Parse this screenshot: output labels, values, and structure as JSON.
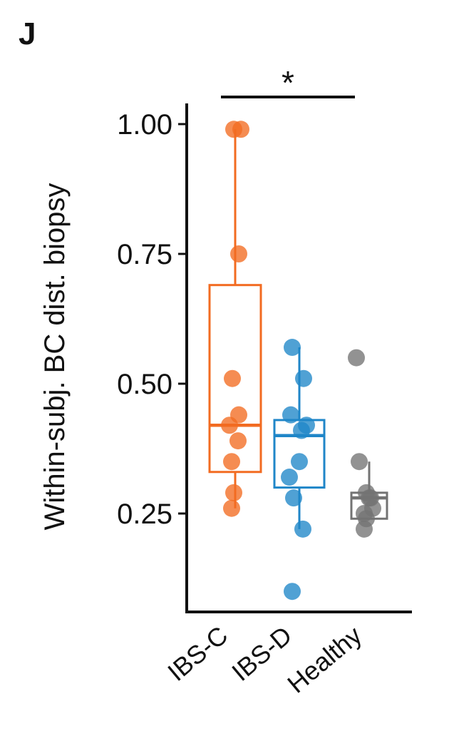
{
  "panel_label": "J",
  "chart_data": {
    "type": "box",
    "ylabel": "Within-subj. BC dist. biopsy",
    "xlabel": "",
    "ylim": [
      0.06,
      1.06
    ],
    "yticks": [
      0.25,
      0.5,
      0.75,
      1.0
    ],
    "ytick_labels": [
      "0.25",
      "0.50",
      "0.75",
      "1.00"
    ],
    "categories": [
      "IBS-C",
      "IBS-D",
      "Healthy"
    ],
    "series": [
      {
        "name": "IBS-C",
        "color": "#F26B21",
        "box": {
          "whisker_low": 0.26,
          "q1": 0.33,
          "median": 0.42,
          "q3": 0.69,
          "whisker_high": 0.99
        },
        "points": [
          0.99,
          0.99,
          0.75,
          0.51,
          0.44,
          0.42,
          0.39,
          0.35,
          0.29,
          0.26
        ]
      },
      {
        "name": "IBS-D",
        "color": "#1F86C8",
        "box": {
          "whisker_low": 0.22,
          "q1": 0.3,
          "median": 0.4,
          "q3": 0.43,
          "whisker_high": 0.57
        },
        "points": [
          0.57,
          0.51,
          0.44,
          0.42,
          0.41,
          0.35,
          0.32,
          0.28,
          0.22,
          0.1
        ]
      },
      {
        "name": "Healthy",
        "color": "#737373",
        "box": {
          "whisker_low": 0.24,
          "q1": 0.24,
          "median": 0.28,
          "q3": 0.29,
          "whisker_high": 0.35
        },
        "points": [
          0.55,
          0.35,
          0.29,
          0.28,
          0.28,
          0.26,
          0.25,
          0.24,
          0.22
        ]
      }
    ],
    "significance": {
      "label": "*",
      "from": "IBS-C",
      "to": "Healthy"
    }
  }
}
